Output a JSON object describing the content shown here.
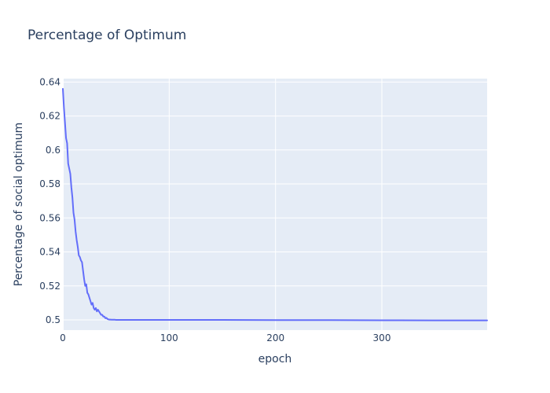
{
  "colors": {
    "plot_bg": "#e5ecf6",
    "grid": "#ffffff",
    "line": "#636efa",
    "text": "#2a3f5f"
  },
  "chart_data": {
    "type": "line",
    "title": "Percentage of Optimum",
    "xlabel": "epoch",
    "ylabel": "Percentage of social optimum",
    "xlim": [
      0,
      399
    ],
    "ylim": [
      0.494,
      0.642
    ],
    "xticks": [
      0,
      100,
      200,
      300
    ],
    "xtick_labels": [
      "0",
      "100",
      "200",
      "300"
    ],
    "yticks": [
      0.5,
      0.52,
      0.54,
      0.56,
      0.58,
      0.6,
      0.62,
      0.64
    ],
    "ytick_labels": [
      "0.5",
      "0.52",
      "0.54",
      "0.56",
      "0.58",
      "0.6",
      "0.62",
      "0.64"
    ],
    "grid": true,
    "legend": false,
    "series": [
      {
        "x": [
          0,
          1,
          2,
          3,
          4,
          5,
          6,
          7,
          8,
          9,
          10,
          11,
          12,
          13,
          14,
          15,
          16,
          17,
          18,
          19,
          20,
          21,
          22,
          23,
          24,
          25,
          26,
          27,
          28,
          29,
          30,
          31,
          32,
          33,
          34,
          35,
          36,
          37,
          38,
          39,
          40,
          41,
          42,
          43,
          44,
          45,
          46,
          47,
          48,
          49,
          50,
          52,
          55,
          60,
          70,
          80,
          100,
          150,
          200,
          250,
          300,
          350,
          399
        ],
        "y": [
          0.636,
          0.625,
          0.616,
          0.607,
          0.604,
          0.592,
          0.589,
          0.586,
          0.578,
          0.572,
          0.563,
          0.559,
          0.552,
          0.547,
          0.543,
          0.538,
          0.537,
          0.535,
          0.534,
          0.529,
          0.524,
          0.52,
          0.521,
          0.516,
          0.515,
          0.513,
          0.511,
          0.509,
          0.51,
          0.507,
          0.506,
          0.507,
          0.505,
          0.506,
          0.505,
          0.504,
          0.503,
          0.503,
          0.502,
          0.502,
          0.501,
          0.5012,
          0.5005,
          0.5003,
          0.5002,
          0.5002,
          0.5001,
          0.5001,
          0.5001,
          0.5001,
          0.5,
          0.5,
          0.5,
          0.5,
          0.5,
          0.5,
          0.5,
          0.5,
          0.4999,
          0.4999,
          0.4998,
          0.4997,
          0.4997
        ]
      }
    ]
  }
}
